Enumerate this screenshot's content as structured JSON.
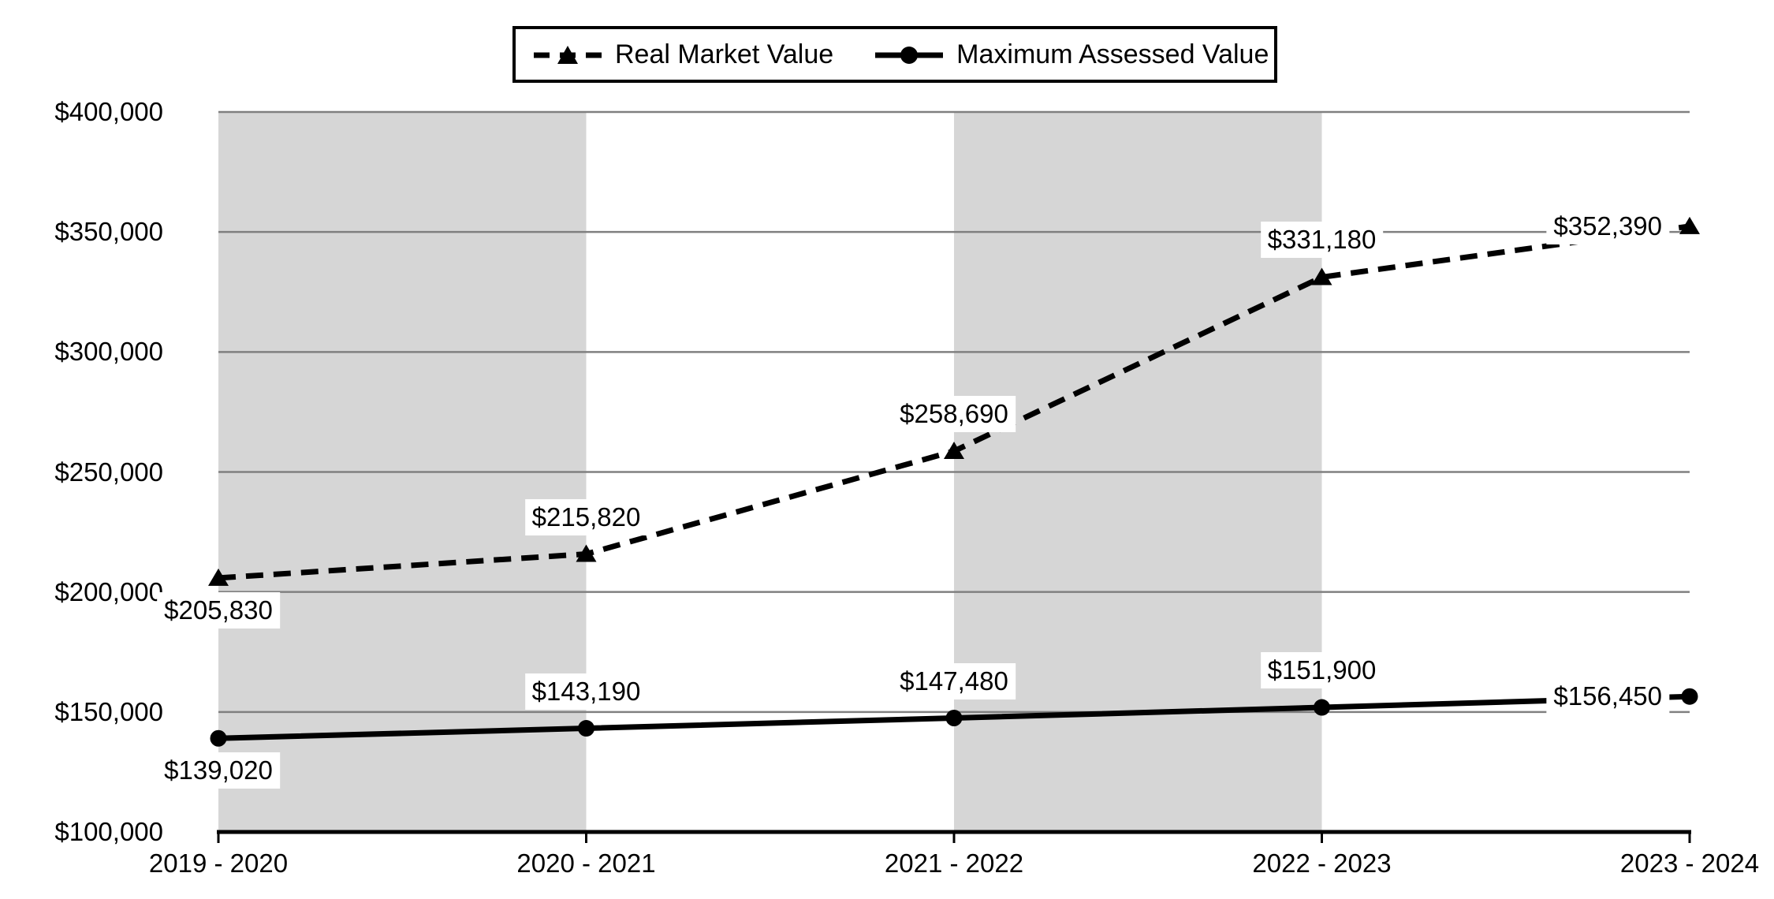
{
  "chart_data": {
    "type": "line",
    "categories": [
      "2019 - 2020",
      "2020 - 2021",
      "2021 - 2022",
      "2022 - 2023",
      "2023 - 2024"
    ],
    "y_axis": {
      "tick_labels": [
        "$400,000",
        "$350,000",
        "$300,000",
        "$250,000",
        "$200,000",
        "$150,000",
        "$100,000"
      ],
      "min": 100000,
      "max": 400000,
      "step": 50000
    },
    "series": [
      {
        "name": "Real Market Value",
        "line_style": "dashed",
        "marker": "triangle",
        "values": [
          205830,
          215820,
          258690,
          331180,
          352390
        ],
        "point_labels": [
          "$205,830",
          "$215,820",
          "$258,690",
          "$331,180",
          "$352,390"
        ],
        "label_positions": [
          "below",
          "above",
          "above",
          "above",
          "left"
        ]
      },
      {
        "name": "Maximum Assessed Value",
        "line_style": "solid",
        "marker": "circle",
        "values": [
          139020,
          143190,
          147480,
          151900,
          156450
        ],
        "point_labels": [
          "$139,020",
          "$143,190",
          "$147,480",
          "$151,900",
          "$156,450"
        ],
        "label_positions": [
          "below",
          "above",
          "above",
          "above",
          "left"
        ]
      }
    ],
    "shaded_column_bands": [
      [
        0,
        1
      ],
      [
        2,
        3
      ]
    ],
    "grid": true,
    "legend_position": "top",
    "colors": {
      "band": "#d6d6d6",
      "gridline": "#808080",
      "axis": "#000000",
      "series": "#000000",
      "background": "#ffffff"
    }
  }
}
